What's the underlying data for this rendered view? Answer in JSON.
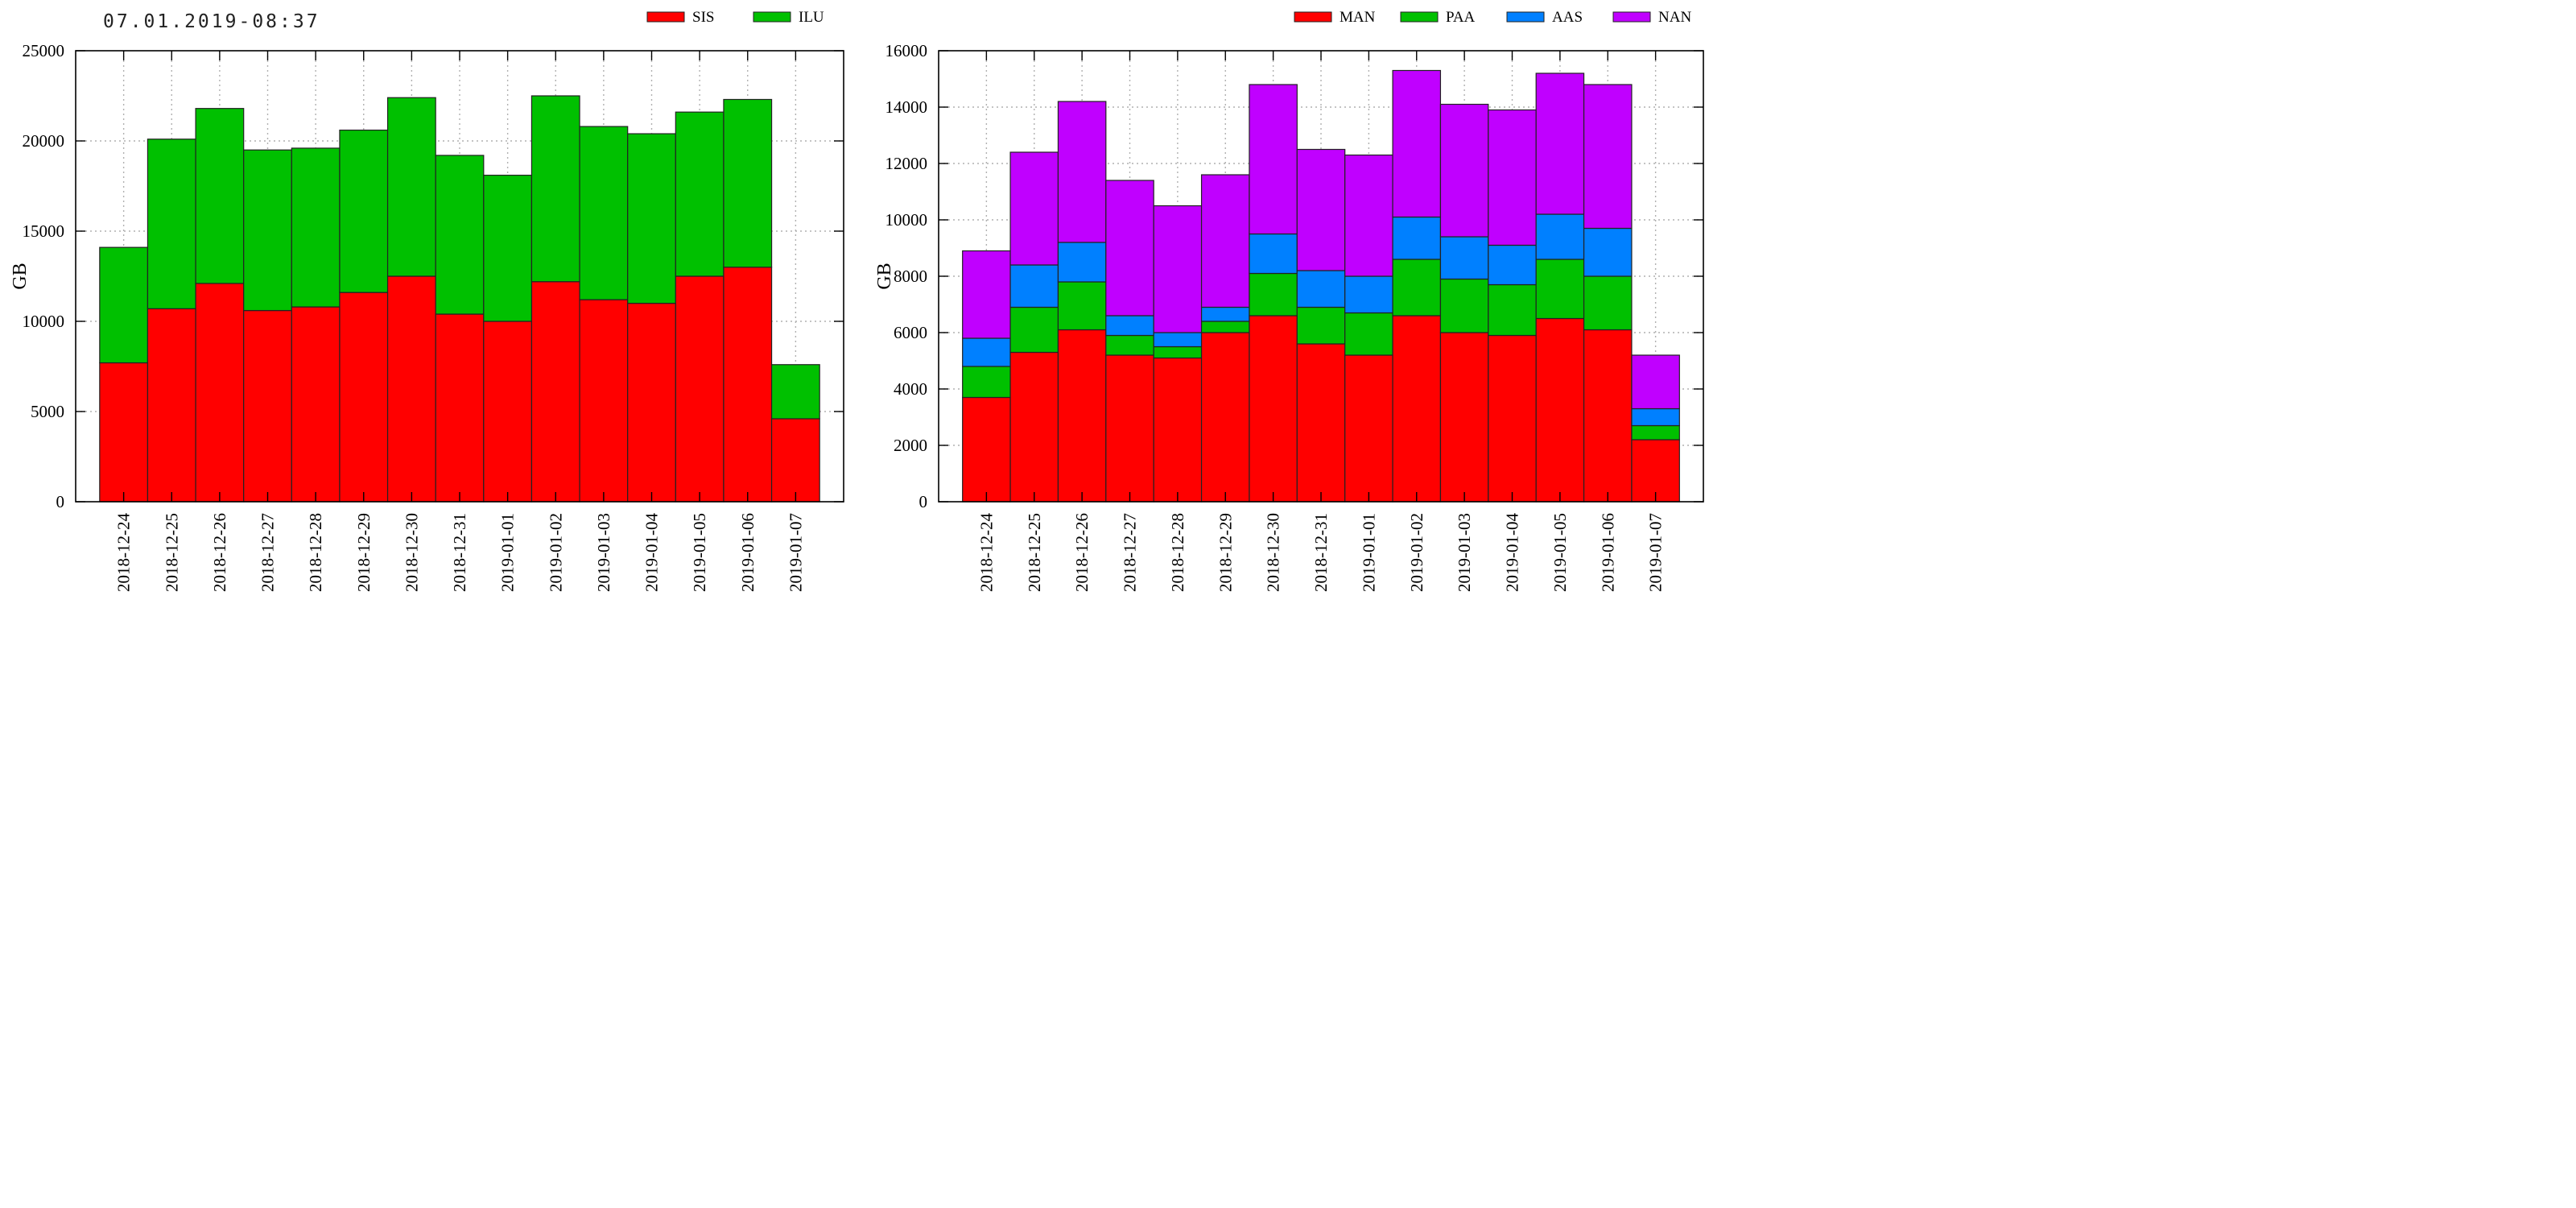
{
  "header": {
    "timestamp": "07.01.2019-08:37"
  },
  "chart_data": [
    {
      "type": "bar",
      "stacked": true,
      "categories": [
        "2018-12-24",
        "2018-12-25",
        "2018-12-26",
        "2018-12-27",
        "2018-12-28",
        "2018-12-29",
        "2018-12-30",
        "2018-12-31",
        "2019-01-01",
        "2019-01-02",
        "2019-01-03",
        "2019-01-04",
        "2019-01-05",
        "2019-01-06",
        "2019-01-07"
      ],
      "series": [
        {
          "name": "SIS",
          "color": "#ff0000",
          "values": [
            7700,
            10700,
            12100,
            10600,
            10800,
            11600,
            12500,
            10400,
            10000,
            12200,
            11200,
            11000,
            12500,
            13000,
            4600
          ]
        },
        {
          "name": "ILU",
          "color": "#00c000",
          "values": [
            6400,
            9400,
            9700,
            8900,
            8800,
            9000,
            9900,
            8800,
            8100,
            10300,
            9600,
            9400,
            9100,
            9300,
            3000
          ]
        }
      ],
      "ylabel": "GB",
      "ylim": [
        0,
        25000
      ],
      "yticks": [
        0,
        5000,
        10000,
        15000,
        20000,
        25000
      ],
      "grid": true,
      "legend_position": "top-right"
    },
    {
      "type": "bar",
      "stacked": true,
      "categories": [
        "2018-12-24",
        "2018-12-25",
        "2018-12-26",
        "2018-12-27",
        "2018-12-28",
        "2018-12-29",
        "2018-12-30",
        "2018-12-31",
        "2019-01-01",
        "2019-01-02",
        "2019-01-03",
        "2019-01-04",
        "2019-01-05",
        "2019-01-06",
        "2019-01-07"
      ],
      "series": [
        {
          "name": "MAN",
          "color": "#ff0000",
          "values": [
            3700,
            5300,
            6100,
            5200,
            5100,
            6000,
            6600,
            5600,
            5200,
            6600,
            6000,
            5900,
            6500,
            6100,
            2200
          ]
        },
        {
          "name": "PAA",
          "color": "#00c000",
          "values": [
            1100,
            1600,
            1700,
            700,
            400,
            400,
            1500,
            1300,
            1500,
            2000,
            1900,
            1800,
            2100,
            1900,
            500
          ]
        },
        {
          "name": "AAS",
          "color": "#0080ff",
          "values": [
            1000,
            1500,
            1400,
            700,
            500,
            500,
            1400,
            1300,
            1300,
            1500,
            1500,
            1400,
            1600,
            1700,
            600
          ]
        },
        {
          "name": "NAN",
          "color": "#c000ff",
          "values": [
            3100,
            4000,
            5000,
            4800,
            4500,
            4700,
            5300,
            4300,
            4300,
            5200,
            4700,
            4800,
            5000,
            5100,
            1900
          ]
        }
      ],
      "ylabel": "GB",
      "ylim": [
        0,
        16000
      ],
      "yticks": [
        0,
        2000,
        4000,
        6000,
        8000,
        10000,
        12000,
        14000,
        16000
      ],
      "grid": true,
      "legend_position": "top-right"
    }
  ]
}
